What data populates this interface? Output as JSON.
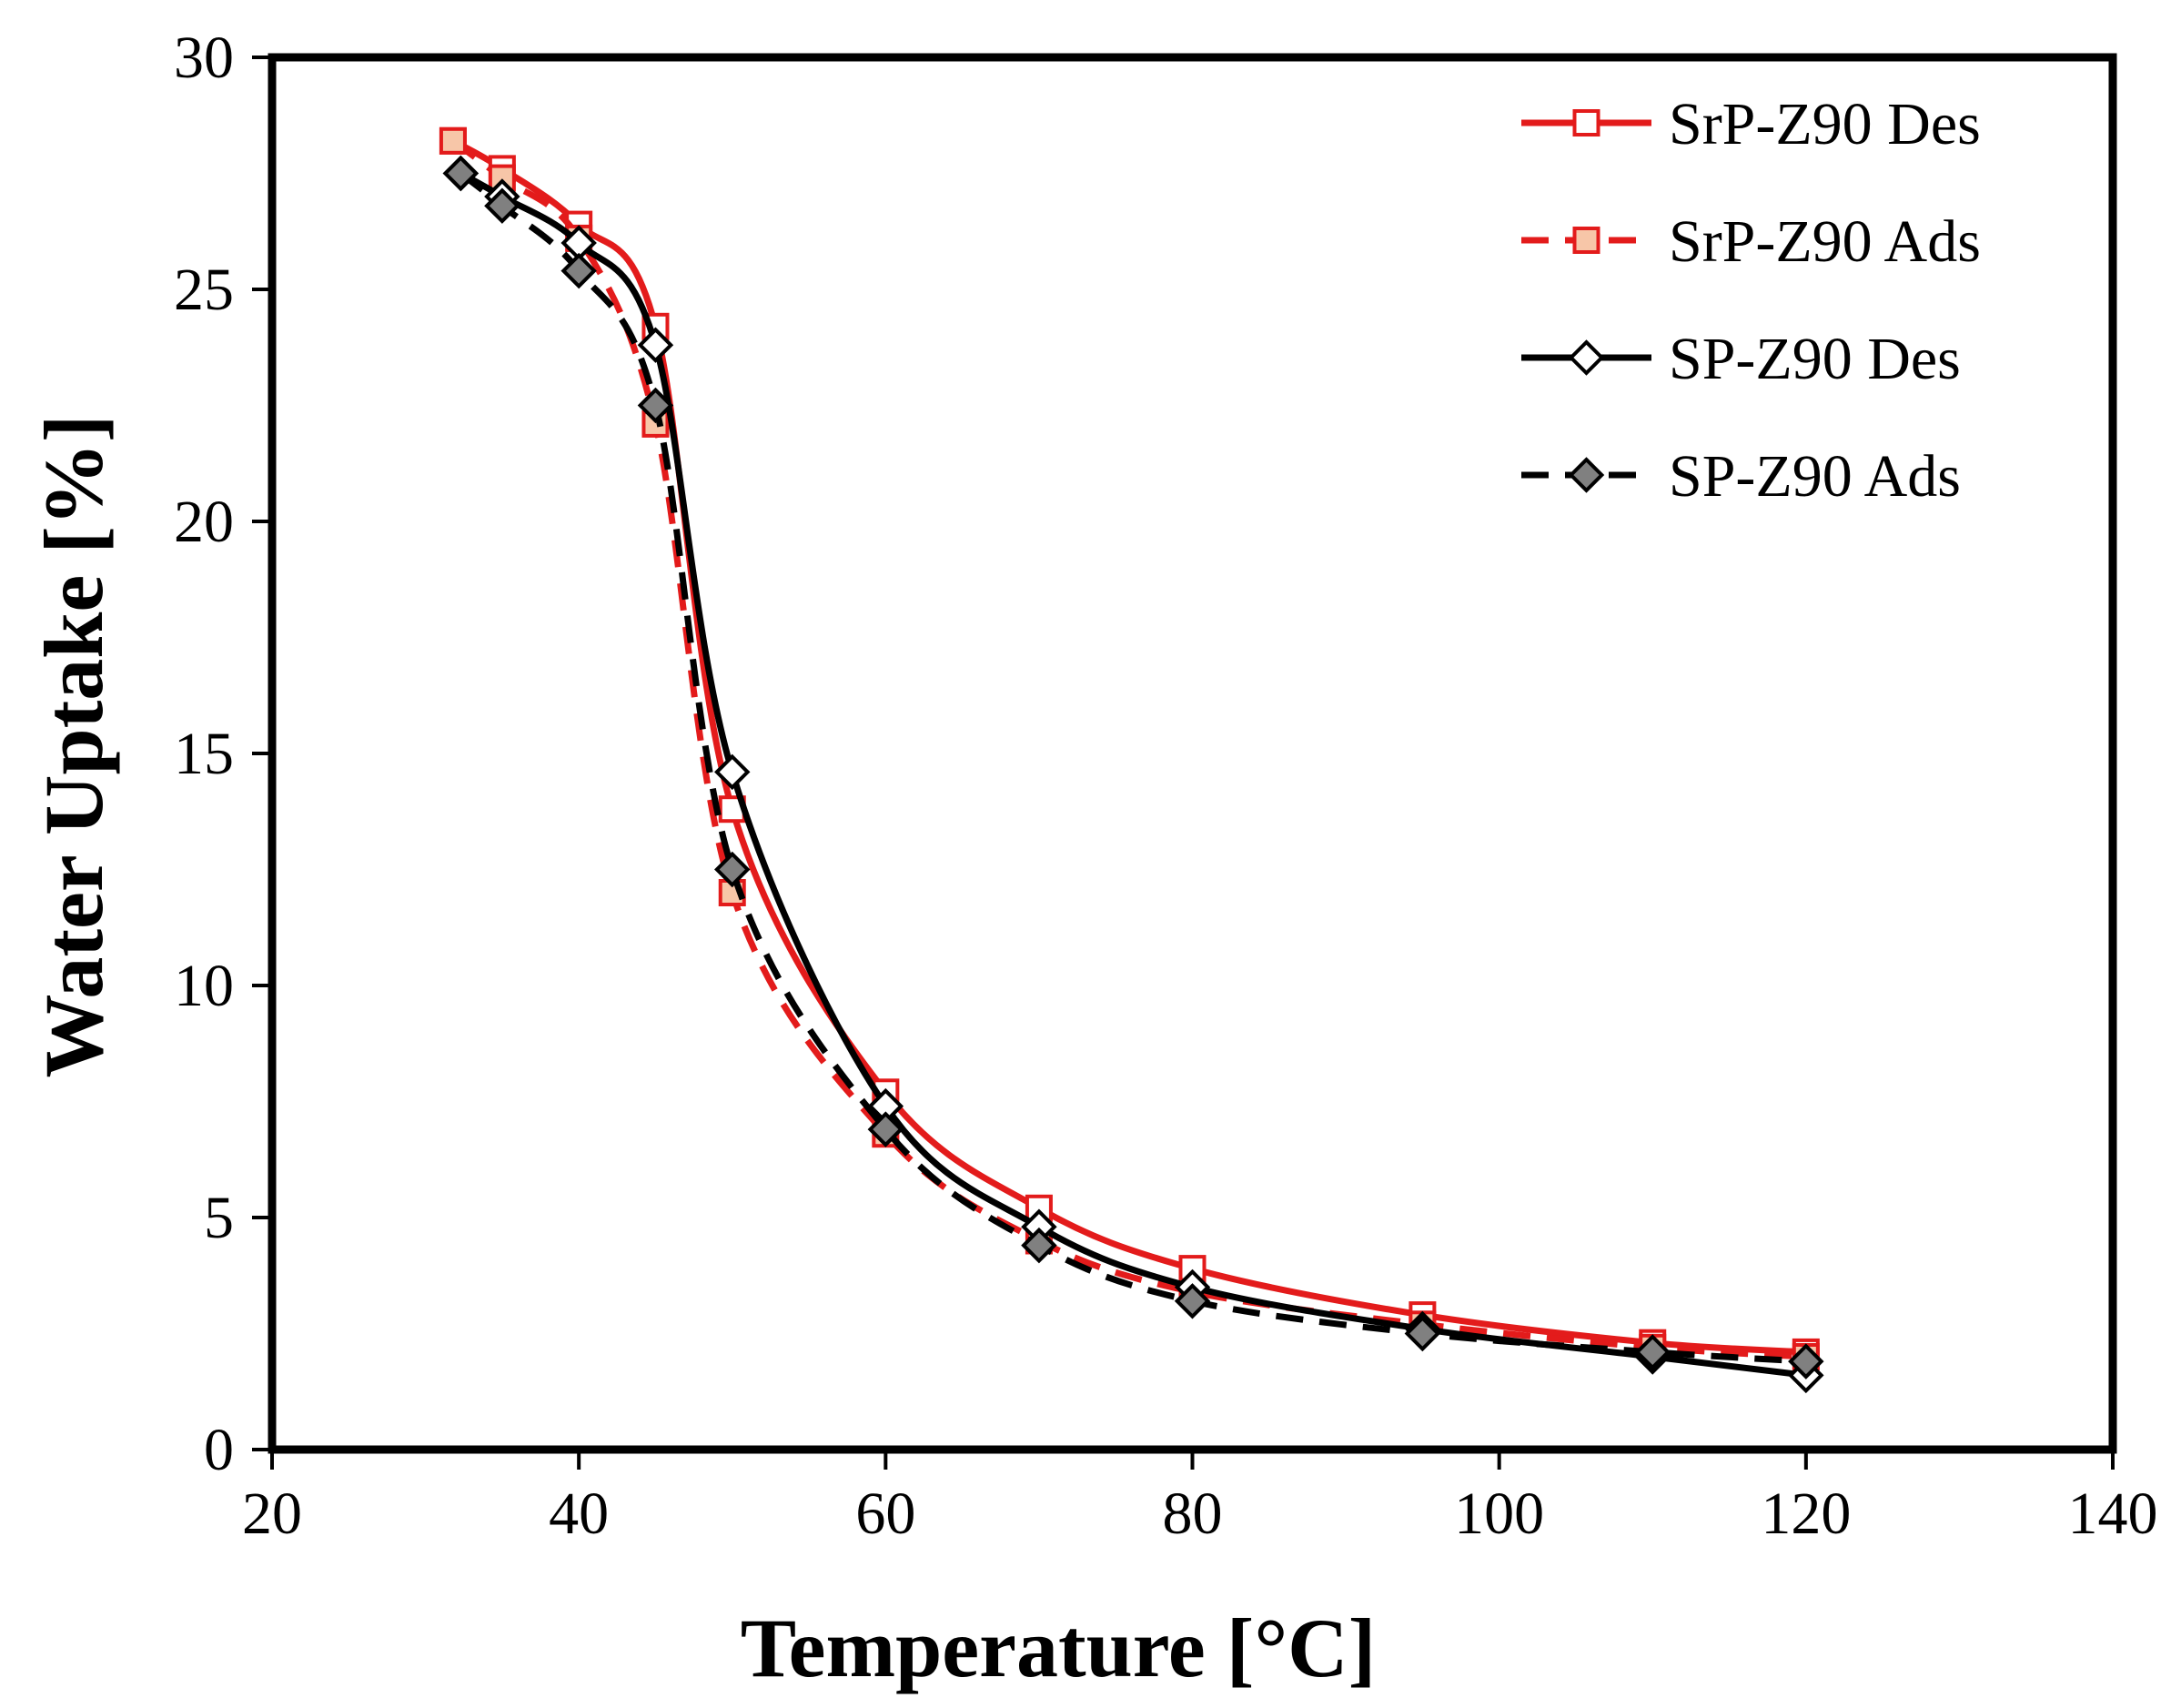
{
  "chart_data": {
    "type": "line",
    "title": "",
    "xlabel": "Temperature [°C]",
    "ylabel": "Water Uptake [%]",
    "xlim": [
      20,
      140
    ],
    "ylim": [
      0,
      30
    ],
    "xticks": [
      20,
      40,
      60,
      80,
      100,
      120,
      140
    ],
    "yticks": [
      0,
      5,
      10,
      15,
      20,
      25,
      30
    ],
    "xtick_labels": [
      "20",
      "40",
      "60",
      "80",
      "100",
      "120",
      "140"
    ],
    "ytick_labels": [
      "0",
      "5",
      "10",
      "15",
      "20",
      "25",
      "30"
    ],
    "grid": false,
    "legend_position": "top-right",
    "series": [
      {
        "name": "SrP-Z90 Des",
        "color": "#e31b1b",
        "dash": "solid",
        "marker": "square",
        "marker_fill": "#ffffff",
        "marker_stroke": "#e31b1b",
        "x": [
          31.8,
          35,
          40,
          45,
          50,
          60,
          70,
          80,
          95,
          110,
          120
        ],
        "y": [
          28.2,
          27.6,
          26.4,
          24.2,
          13.8,
          7.7,
          5.2,
          3.9,
          2.9,
          2.3,
          2.1
        ]
      },
      {
        "name": "SrP-Z90 Ads",
        "color": "#e31b1b",
        "dash": "dashed",
        "marker": "square",
        "marker_fill": "#f7c6a8",
        "marker_stroke": "#e31b1b",
        "x": [
          31.8,
          35,
          40,
          45,
          50,
          60,
          70,
          80,
          95,
          110,
          120
        ],
        "y": [
          28.2,
          27.4,
          26.1,
          22.1,
          12.0,
          6.8,
          4.5,
          3.4,
          2.7,
          2.2,
          2.0
        ]
      },
      {
        "name": "SP-Z90 Des",
        "color": "#000000",
        "dash": "solid",
        "marker": "diamond",
        "marker_fill": "#ffffff",
        "marker_stroke": "#000000",
        "x": [
          32.3,
          35,
          40,
          45,
          50,
          60,
          70,
          80,
          95,
          110,
          120
        ],
        "y": [
          27.5,
          27.0,
          26.0,
          23.8,
          14.6,
          7.4,
          4.8,
          3.5,
          2.6,
          2.0,
          1.6
        ]
      },
      {
        "name": "SP-Z90 Ads",
        "color": "#000000",
        "dash": "dashed",
        "marker": "diamond",
        "marker_fill": "#808080",
        "marker_stroke": "#000000",
        "x": [
          32.3,
          35,
          40,
          45,
          50,
          60,
          70,
          80,
          95,
          110,
          120
        ],
        "y": [
          27.5,
          26.8,
          25.4,
          22.5,
          12.5,
          6.9,
          4.4,
          3.2,
          2.5,
          2.1,
          1.9
        ]
      }
    ]
  }
}
